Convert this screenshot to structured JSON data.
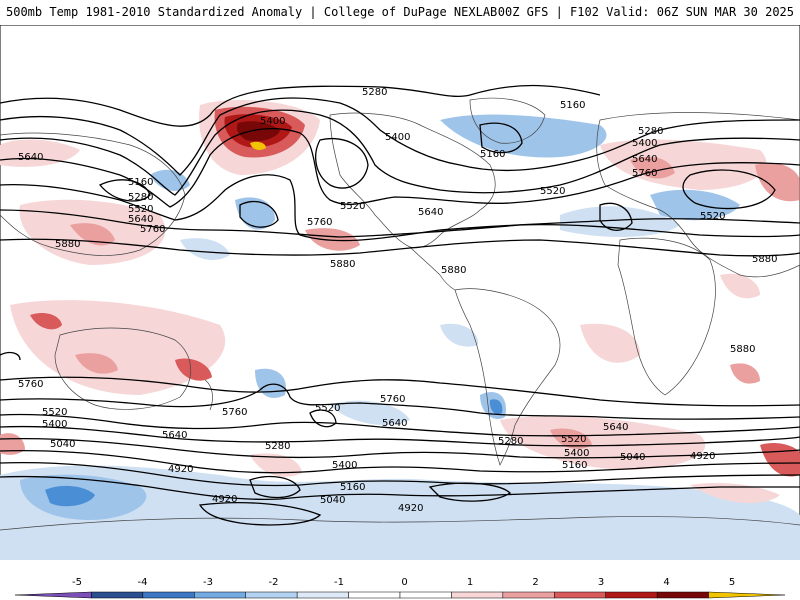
{
  "header": {
    "left_title": "500mb Temp 1981-2010 Standardized Anomaly | College of DuPage NEXLAB",
    "right_title": "00Z GFS | F102 Valid: 06Z SUN MAR 30 2025"
  },
  "map": {
    "contour_labels": [
      {
        "id": "c5280a",
        "text": "5280"
      },
      {
        "id": "c5160a",
        "text": "5160"
      },
      {
        "id": "c5400a",
        "text": "5400"
      },
      {
        "id": "c5640a",
        "text": "5640"
      },
      {
        "id": "c5160b",
        "text": "5160"
      },
      {
        "id": "c5280b",
        "text": "5280"
      },
      {
        "id": "c5520a",
        "text": "5520"
      },
      {
        "id": "c5640b",
        "text": "5640"
      },
      {
        "id": "c5760a",
        "text": "5760"
      },
      {
        "id": "c5880a",
        "text": "5880"
      },
      {
        "id": "c5400b",
        "text": "5400"
      },
      {
        "id": "c5160c",
        "text": "5160"
      },
      {
        "id": "c5520b",
        "text": "5520"
      },
      {
        "id": "c5640c",
        "text": "5640"
      },
      {
        "id": "c5760b",
        "text": "5760"
      },
      {
        "id": "c5880b",
        "text": "5880"
      },
      {
        "id": "c5880c",
        "text": "5880"
      },
      {
        "id": "c5280c",
        "text": "5280"
      },
      {
        "id": "c5400c",
        "text": "5400"
      },
      {
        "id": "c5520c",
        "text": "5520"
      },
      {
        "id": "c5640d",
        "text": "5640"
      },
      {
        "id": "c5760c",
        "text": "5760"
      },
      {
        "id": "c5520d",
        "text": "5520"
      },
      {
        "id": "c5880d",
        "text": "5880"
      },
      {
        "id": "c5880e",
        "text": "5880"
      },
      {
        "id": "c5760d",
        "text": "5760"
      },
      {
        "id": "c5520e",
        "text": "5520"
      },
      {
        "id": "c5400d",
        "text": "5400"
      },
      {
        "id": "c5040a",
        "text": "5040"
      },
      {
        "id": "c5760e",
        "text": "5760"
      },
      {
        "id": "c5640e",
        "text": "5640"
      },
      {
        "id": "c5520f",
        "text": "5520"
      },
      {
        "id": "c5280d",
        "text": "5280"
      },
      {
        "id": "c5760f",
        "text": "5760"
      },
      {
        "id": "c5640f",
        "text": "5640"
      },
      {
        "id": "c5640g",
        "text": "5640"
      },
      {
        "id": "c5280e",
        "text": "5280"
      },
      {
        "id": "c5520g",
        "text": "5520"
      },
      {
        "id": "c5400e",
        "text": "5400"
      },
      {
        "id": "c5160d",
        "text": "5160"
      },
      {
        "id": "c5040b",
        "text": "5040"
      },
      {
        "id": "c4920a",
        "text": "4920"
      },
      {
        "id": "c4920b",
        "text": "4920"
      },
      {
        "id": "c4920c",
        "text": "4920"
      },
      {
        "id": "c5400f",
        "text": "5400"
      },
      {
        "id": "c5160e",
        "text": "5160"
      },
      {
        "id": "c5040c",
        "text": "5040"
      },
      {
        "id": "c4920d",
        "text": "4920"
      }
    ],
    "colors": {
      "neg5": "#7b4fb8",
      "neg4": "#2c4f8f",
      "neg3": "#4a8fd6",
      "neg2": "#9fc4ea",
      "neg1": "#cfe0f3",
      "pos1": "#f6d6d6",
      "pos2": "#eba0a0",
      "pos3": "#d85a5a",
      "pos4": "#b01818",
      "pos5": "#780808",
      "pos6": "#f2c300"
    }
  },
  "colorbar": {
    "ticks": [
      "-5",
      "-4",
      "-3",
      "-2",
      "-1",
      "0",
      "1",
      "2",
      "3",
      "4",
      "5"
    ],
    "colors": [
      "#7b4fb8",
      "#2c4f8f",
      "#3d78c4",
      "#74abe3",
      "#b3d2f1",
      "#dde9f7",
      "#ffffff",
      "#ffffff",
      "#f6d6d6",
      "#eba0a0",
      "#d85a5a",
      "#b01818",
      "#780808",
      "#f2c300"
    ]
  }
}
